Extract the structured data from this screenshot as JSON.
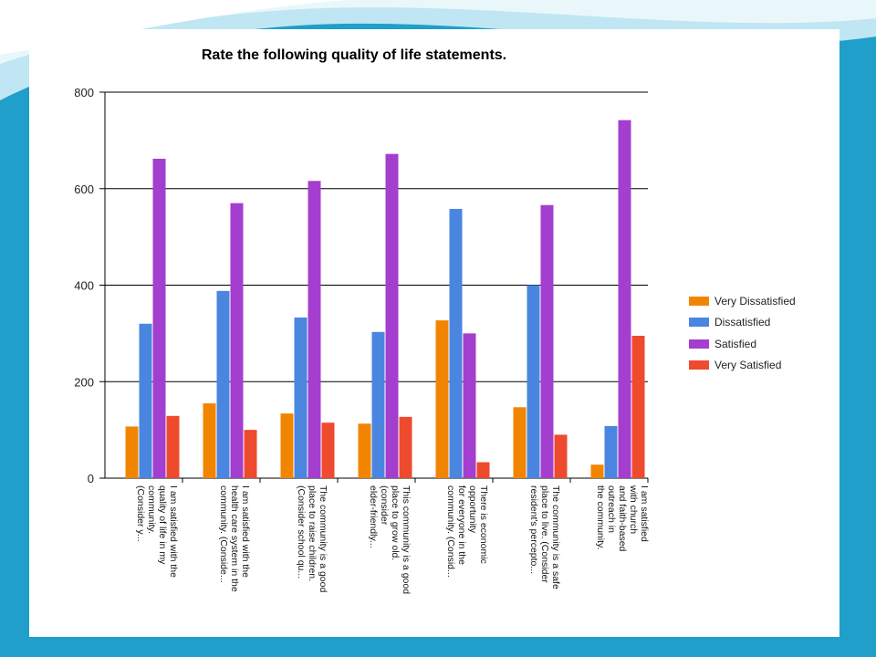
{
  "chart_data": {
    "type": "bar",
    "title": "Rate the following quality of life statements.",
    "xlabel": "",
    "ylabel": "",
    "ylim": [
      0,
      800
    ],
    "yticks": [
      0,
      200,
      400,
      600,
      800
    ],
    "grid": true,
    "legend_position": "right",
    "categories": [
      [
        "I am satisfied with the",
        "quality of life in my",
        "community.",
        "(Consider y..."
      ],
      [
        "I am satisfied with the",
        "health care system in the",
        "community. (Conside..."
      ],
      [
        "The community is a good",
        "place to raise children.",
        "(Consider school qu..."
      ],
      [
        "This community is a good",
        "place to grow old.",
        "(consider",
        "elder-friendly..."
      ],
      [
        "There is economic",
        "opportunity",
        "for everyone in the",
        "community. (Consid..."
      ],
      [
        "The community is a safe",
        "place to live. (Consider",
        "resident's percepto..."
      ],
      [
        "I am satisfied",
        "with church",
        "and faith-based",
        "outreach in",
        "the community."
      ]
    ],
    "series": [
      {
        "name": "Very Dissatisfied",
        "color": "#f28500",
        "values": [
          107,
          155,
          134,
          113,
          327,
          147,
          28
        ]
      },
      {
        "name": "Dissatisfied",
        "color": "#4a86e0",
        "values": [
          320,
          388,
          333,
          303,
          558,
          400,
          108
        ]
      },
      {
        "name": "Satisfied",
        "color": "#a43ecf",
        "values": [
          662,
          570,
          616,
          672,
          300,
          566,
          742
        ]
      },
      {
        "name": "Very Satisfied",
        "color": "#ee4a2e",
        "values": [
          129,
          100,
          115,
          127,
          33,
          90,
          295
        ]
      }
    ]
  }
}
